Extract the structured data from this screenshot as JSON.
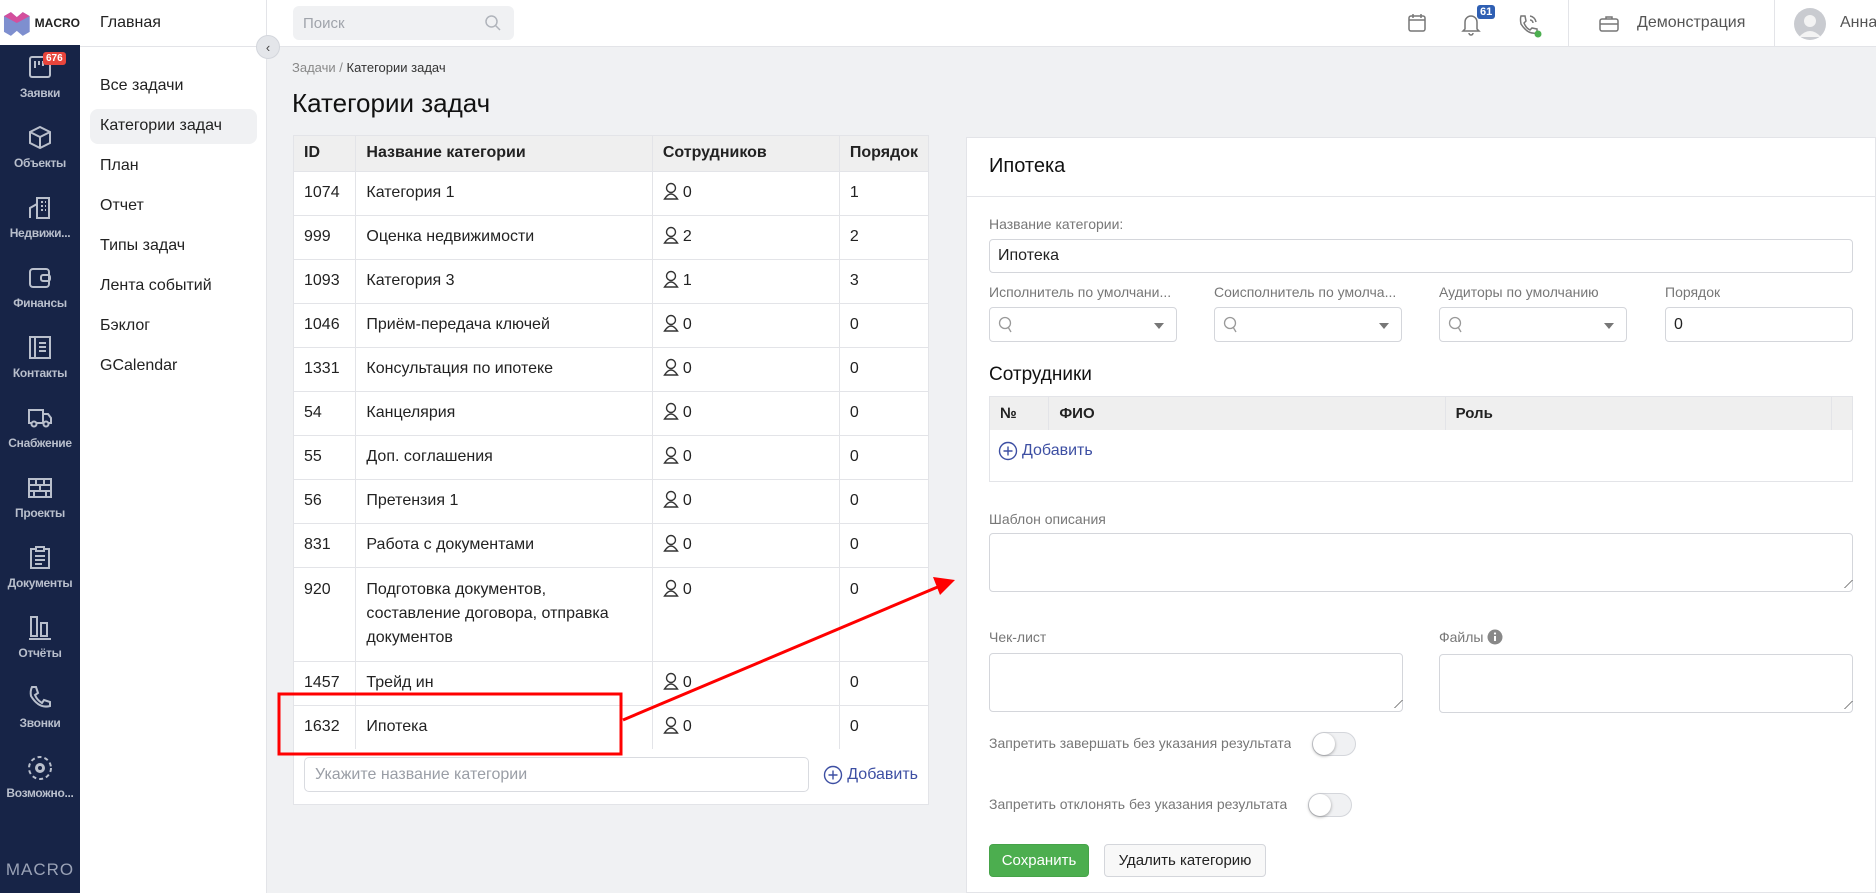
{
  "brand": {
    "logo_text": "MACRO",
    "footer": "MACRO"
  },
  "rail": [
    {
      "label": "Заявки",
      "icon": "kanban-icon",
      "badge": "676"
    },
    {
      "label": "Объекты",
      "icon": "cube-icon"
    },
    {
      "label": "Недвижи...",
      "icon": "building-icon"
    },
    {
      "label": "Финансы",
      "icon": "wallet-icon"
    },
    {
      "label": "Контакты",
      "icon": "contacts-icon"
    },
    {
      "label": "Снабжение",
      "icon": "truck-icon"
    },
    {
      "label": "Проекты",
      "icon": "bricks-icon"
    },
    {
      "label": "Документы",
      "icon": "clipboard-icon"
    },
    {
      "label": "Отчёты",
      "icon": "bar-chart-icon"
    },
    {
      "label": "Звонки",
      "icon": "phone-icon"
    },
    {
      "label": "Возможно...",
      "icon": "gear-icon"
    }
  ],
  "subnav": {
    "header": "Главная",
    "items": [
      {
        "label": "Все задачи"
      },
      {
        "label": "Категории задач",
        "active": true
      },
      {
        "label": "План"
      },
      {
        "label": "Отчет"
      },
      {
        "label": "Типы задач"
      },
      {
        "label": "Лента событий"
      },
      {
        "label": "Бэклог"
      },
      {
        "label": "GCalendar"
      }
    ]
  },
  "topbar": {
    "search_placeholder": "Поиск",
    "notifications": "61",
    "workspace": "Демонстрация",
    "user": "Анна",
    "phone_status_color": "#4caf50"
  },
  "breadcrumb": {
    "parent": "Задачи",
    "sep": "/",
    "current": "Категории задач"
  },
  "page_title": "Категории задач",
  "categories": {
    "columns": [
      "ID",
      "Название категории",
      "Сотрудников",
      "Порядок"
    ],
    "rows": [
      {
        "id": "1074",
        "name": "Категория 1",
        "staff": "0",
        "order": "1"
      },
      {
        "id": "999",
        "name": "Оценка недвижимости",
        "staff": "2",
        "order": "2"
      },
      {
        "id": "1093",
        "name": "Категория 3",
        "staff": "1",
        "order": "3"
      },
      {
        "id": "1046",
        "name": "Приём-передача ключей",
        "staff": "0",
        "order": "0"
      },
      {
        "id": "1331",
        "name": "Консультация по ипотеке",
        "staff": "0",
        "order": "0"
      },
      {
        "id": "54",
        "name": "Канцелярия",
        "staff": "0",
        "order": "0"
      },
      {
        "id": "55",
        "name": "Доп. соглашения",
        "staff": "0",
        "order": "0"
      },
      {
        "id": "56",
        "name": "Претензия 1",
        "staff": "0",
        "order": "0"
      },
      {
        "id": "831",
        "name": "Работа с документами",
        "staff": "0",
        "order": "0"
      },
      {
        "id": "920",
        "name": "Подготовка документов, составление договора, отправка документов",
        "staff": "0",
        "order": "0"
      },
      {
        "id": "1457",
        "name": "Трейд ин",
        "staff": "0",
        "order": "0"
      },
      {
        "id": "1632",
        "name": "Ипотека",
        "staff": "0",
        "order": "0",
        "highlighted": true
      }
    ],
    "new_placeholder": "Укажите название категории",
    "add_label": "Добавить"
  },
  "detail": {
    "title": "Ипотека",
    "name_label": "Название категории:",
    "name_value": "Ипотека",
    "executor_label": "Исполнитель по умолчани...",
    "coexecutor_label": "Соисполнитель по умолча...",
    "auditors_label": "Аудиторы по умолчанию",
    "order_label": "Порядок",
    "order_value": "0",
    "employees_heading": "Сотрудники",
    "employees_columns": [
      "№",
      "ФИО",
      "Роль"
    ],
    "employees_add": "Добавить",
    "template_label": "Шаблон описания",
    "checklist_label": "Чек-лист",
    "files_label": "Файлы",
    "toggle1_label": "Запретить завершать без указания результата",
    "toggle1_on": false,
    "toggle2_label": "Запретить отклонять без указания результата",
    "toggle2_on": false,
    "save": "Сохранить",
    "delete": "Удалить категорию"
  },
  "colors": {
    "rail": "#172447",
    "accent": "#3d4fa3",
    "save": "#4cae4f",
    "badge": "#e8453c",
    "annotation": "#ff0000"
  }
}
